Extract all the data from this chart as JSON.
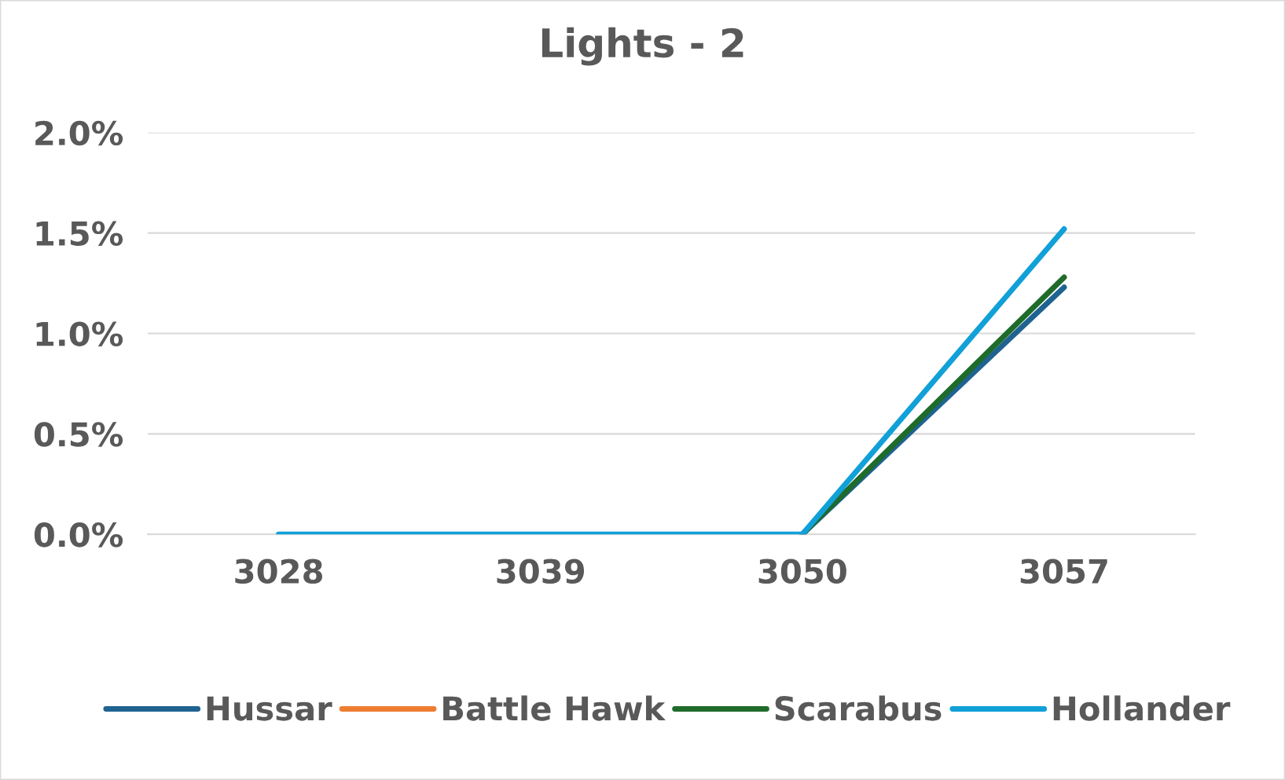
{
  "chart_data": {
    "type": "line",
    "title": "Lights - 2",
    "categories": [
      "3028",
      "3039",
      "3050",
      "3057"
    ],
    "series": [
      {
        "name": "Hussar",
        "color": "#1f6391",
        "values": [
          null,
          null,
          0,
          1.23
        ]
      },
      {
        "name": "Battle Hawk",
        "color": "#ed7d31",
        "values": [
          null,
          null,
          null,
          null
        ]
      },
      {
        "name": "Scarabus",
        "color": "#1e6b2a",
        "values": [
          null,
          null,
          0,
          1.28
        ]
      },
      {
        "name": "Hollander",
        "color": "#11a0d8",
        "values": [
          0,
          0,
          0,
          1.52
        ]
      }
    ],
    "ylim": [
      0,
      2
    ],
    "yticks": [
      {
        "value": 0,
        "label": "0.0%"
      },
      {
        "value": 0.5,
        "label": "0.5%"
      },
      {
        "value": 1,
        "label": "1.0%"
      },
      {
        "value": 1.5,
        "label": "1.5%"
      },
      {
        "value": 2,
        "label": "2.0%"
      }
    ],
    "grid": "y",
    "legend": "bottom",
    "marker": "none",
    "line_style": "solid"
  }
}
